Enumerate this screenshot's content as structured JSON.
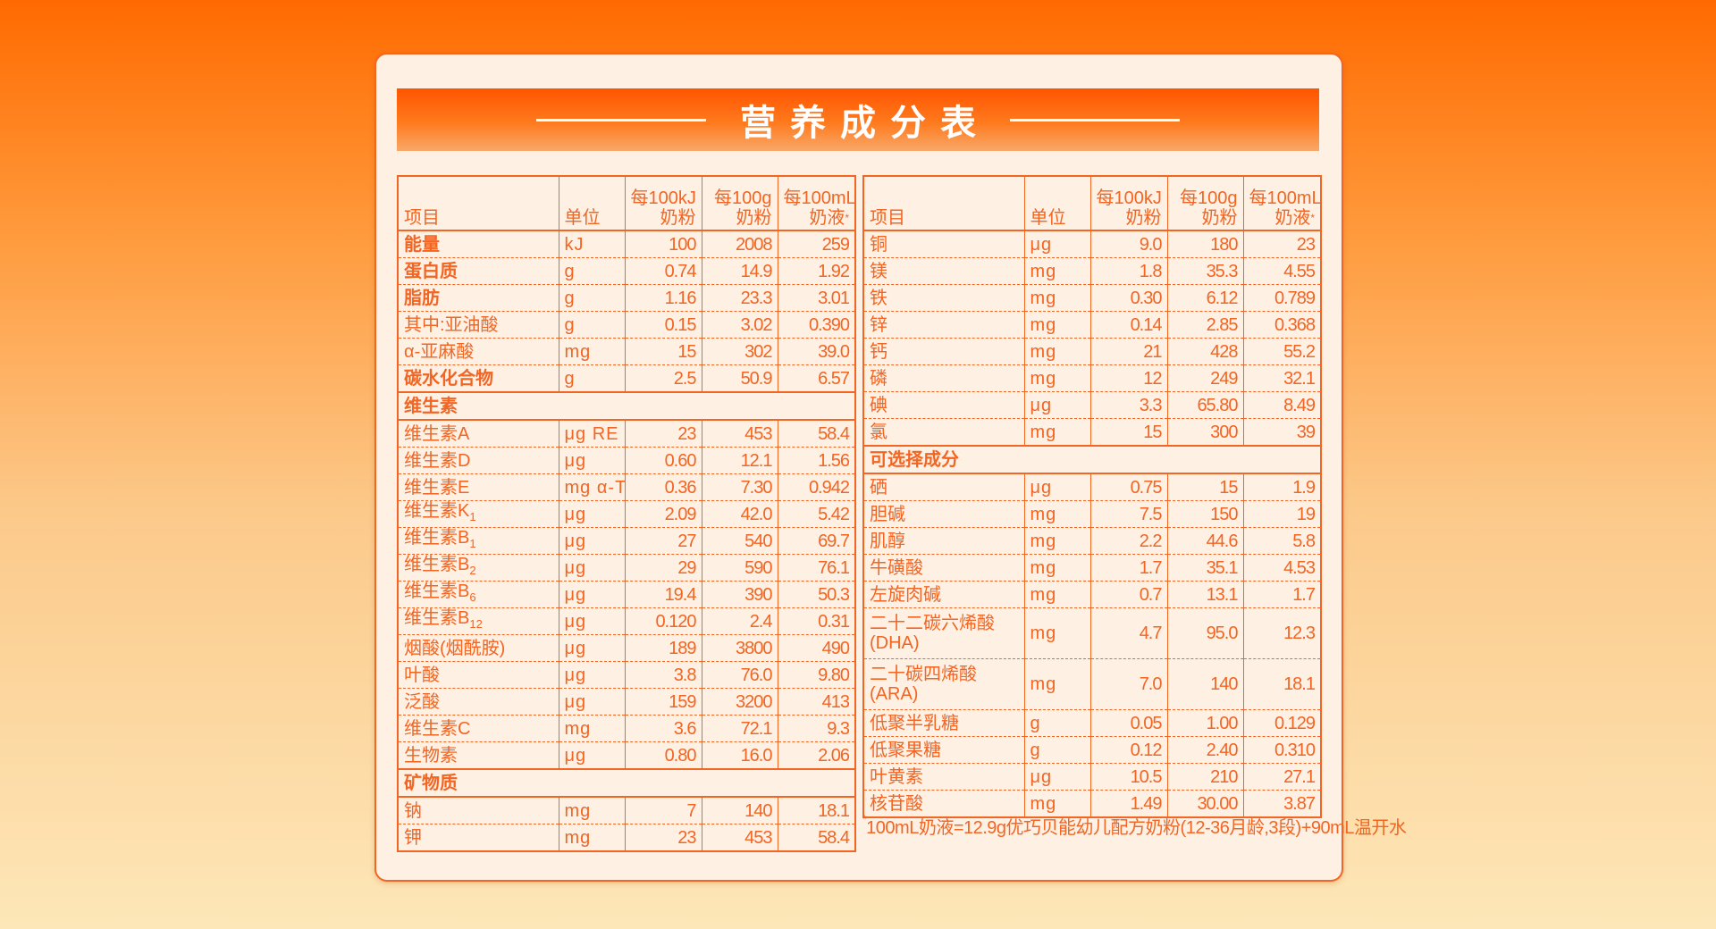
{
  "title": "营养成分表",
  "colors": {
    "accent": "#f26522",
    "card_bg": "#fff0e4"
  },
  "columns": {
    "item": "项目",
    "unit": "单位",
    "c1a": "每100kJ",
    "c1b": "奶粉",
    "c2a": "每100g",
    "c2b": "奶粉",
    "c3a": "每100mL",
    "c3b": "奶液",
    "star": "*"
  },
  "left_rows": [
    {
      "name": "能量",
      "bold": true,
      "unit": "kJ",
      "v": [
        "100",
        "2008",
        "259"
      ]
    },
    {
      "name": "蛋白质",
      "bold": true,
      "unit": "g",
      "v": [
        "0.74",
        "14.9",
        "1.92"
      ]
    },
    {
      "name": "脂肪",
      "bold": true,
      "unit": "g",
      "v": [
        "1.16",
        "23.3",
        "3.01"
      ]
    },
    {
      "name": "其中:亚油酸",
      "unit": "g",
      "v": [
        "0.15",
        "3.02",
        "0.390"
      ]
    },
    {
      "name": "α-亚麻酸",
      "unit": "mg",
      "v": [
        "15",
        "302",
        "39.0"
      ]
    },
    {
      "name": "碳水化合物",
      "bold": true,
      "unit": "g",
      "v": [
        "2.5",
        "50.9",
        "6.57"
      ]
    },
    {
      "section": "维生素"
    },
    {
      "name": "维生素A",
      "unit": "μg RE",
      "v": [
        "23",
        "453",
        "58.4"
      ]
    },
    {
      "name": "维生素D",
      "unit": "μg",
      "v": [
        "0.60",
        "12.1",
        "1.56"
      ]
    },
    {
      "name": "维生素E",
      "unit": "mg α-TE",
      "v": [
        "0.36",
        "7.30",
        "0.942"
      ]
    },
    {
      "name": "维生素K",
      "sub": "1",
      "unit": "μg",
      "v": [
        "2.09",
        "42.0",
        "5.42"
      ]
    },
    {
      "name": "维生素B",
      "sub": "1",
      "unit": "μg",
      "v": [
        "27",
        "540",
        "69.7"
      ]
    },
    {
      "name": "维生素B",
      "sub": "2",
      "unit": "μg",
      "v": [
        "29",
        "590",
        "76.1"
      ]
    },
    {
      "name": "维生素B",
      "sub": "6",
      "unit": "μg",
      "v": [
        "19.4",
        "390",
        "50.3"
      ]
    },
    {
      "name": "维生素B",
      "sub": "12",
      "unit": "μg",
      "v": [
        "0.120",
        "2.4",
        "0.31"
      ]
    },
    {
      "name": "烟酸(烟酰胺)",
      "unit": "μg",
      "v": [
        "189",
        "3800",
        "490"
      ]
    },
    {
      "name": "叶酸",
      "unit": "μg",
      "v": [
        "3.8",
        "76.0",
        "9.80"
      ]
    },
    {
      "name": "泛酸",
      "unit": "μg",
      "v": [
        "159",
        "3200",
        "413"
      ]
    },
    {
      "name": "维生素C",
      "unit": "mg",
      "v": [
        "3.6",
        "72.1",
        "9.3"
      ]
    },
    {
      "name": "生物素",
      "unit": "μg",
      "v": [
        "0.80",
        "16.0",
        "2.06"
      ]
    },
    {
      "section": "矿物质"
    },
    {
      "name": "钠",
      "unit": "mg",
      "v": [
        "7",
        "140",
        "18.1"
      ]
    },
    {
      "name": "钾",
      "unit": "mg",
      "v": [
        "23",
        "453",
        "58.4"
      ]
    }
  ],
  "right_rows": [
    {
      "name": "铜",
      "unit": "μg",
      "v": [
        "9.0",
        "180",
        "23"
      ]
    },
    {
      "name": "镁",
      "unit": "mg",
      "v": [
        "1.8",
        "35.3",
        "4.55"
      ]
    },
    {
      "name": "铁",
      "unit": "mg",
      "v": [
        "0.30",
        "6.12",
        "0.789"
      ]
    },
    {
      "name": "锌",
      "unit": "mg",
      "v": [
        "0.14",
        "2.85",
        "0.368"
      ]
    },
    {
      "name": "钙",
      "unit": "mg",
      "v": [
        "21",
        "428",
        "55.2"
      ]
    },
    {
      "name": "磷",
      "unit": "mg",
      "v": [
        "12",
        "249",
        "32.1"
      ]
    },
    {
      "name": "碘",
      "unit": "μg",
      "v": [
        "3.3",
        "65.80",
        "8.49"
      ]
    },
    {
      "name": "氯",
      "unit": "mg",
      "v": [
        "15",
        "300",
        "39"
      ]
    },
    {
      "section": "可选择成分"
    },
    {
      "name": "硒",
      "unit": "μg",
      "v": [
        "0.75",
        "15",
        "1.9"
      ]
    },
    {
      "name": "胆碱",
      "unit": "mg",
      "v": [
        "7.5",
        "150",
        "19"
      ]
    },
    {
      "name": "肌醇",
      "unit": "mg",
      "v": [
        "2.2",
        "44.6",
        "5.8"
      ]
    },
    {
      "name": "牛磺酸",
      "unit": "mg",
      "v": [
        "1.7",
        "35.1",
        "4.53"
      ]
    },
    {
      "name": "左旋肉碱",
      "unit": "mg",
      "v": [
        "0.7",
        "13.1",
        "1.7"
      ]
    },
    {
      "name": "二十二碳六烯酸",
      "name2": "(DHA)",
      "unit": "mg",
      "v": [
        "4.7",
        "95.0",
        "12.3"
      ]
    },
    {
      "name": "二十碳四烯酸",
      "name2": "(ARA)",
      "unit": "mg",
      "v": [
        "7.0",
        "140",
        "18.1"
      ]
    },
    {
      "name": "低聚半乳糖",
      "unit": "g",
      "v": [
        "0.05",
        "1.00",
        "0.129"
      ]
    },
    {
      "name": "低聚果糖",
      "unit": "g",
      "v": [
        "0.12",
        "2.40",
        "0.310"
      ]
    },
    {
      "name": "叶黄素",
      "unit": "μg",
      "v": [
        "10.5",
        "210",
        "27.1"
      ]
    },
    {
      "name": "核苷酸",
      "unit": "mg",
      "v": [
        "1.49",
        "30.00",
        "3.87"
      ]
    }
  ],
  "footnote_star": "*",
  "footnote": "100mL奶液=12.9g优巧贝能幼儿配方奶粉(12-36月龄,3段)+90mL温开水"
}
